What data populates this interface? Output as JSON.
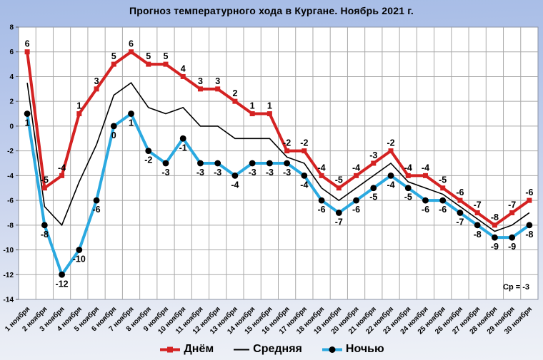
{
  "title": "Прогноз температурного хода в Кургане. Ноябрь 2021 г.",
  "annotation": "Ср = -3",
  "chart_data": {
    "type": "line",
    "title": "Прогноз температурного хода в Кургане. Ноябрь 2021 г.",
    "categories": [
      "1 ноября",
      "2 ноября",
      "3 ноября",
      "4 ноября",
      "5 ноября",
      "6 ноября",
      "7 ноября",
      "8 ноября",
      "9 ноября",
      "10 ноября",
      "11 ноября",
      "12 ноября",
      "13 ноября",
      "14 ноября",
      "15 ноября",
      "16 ноября",
      "17 ноября",
      "18 ноября",
      "19 ноября",
      "20 ноября",
      "21 ноября",
      "22 ноября",
      "23 ноября",
      "24 ноября",
      "25 ноября",
      "26 ноября",
      "27 ноября",
      "28 ноября",
      "29 ноября",
      "30 ноября"
    ],
    "series": [
      {
        "name": "Днём",
        "color": "#d42222",
        "marker": "square",
        "line_width": 4,
        "labels": "above",
        "values": [
          6,
          -5,
          -4,
          1,
          3,
          5,
          6,
          5,
          5,
          4,
          3,
          3,
          2,
          1,
          1,
          -2,
          -2,
          -4,
          -5,
          -4,
          -3,
          -2,
          -4,
          -4,
          -5,
          -6,
          -7,
          -8,
          -7,
          -6
        ]
      },
      {
        "name": "Средняя",
        "color": "#000000",
        "marker": "none",
        "line_width": 1.6,
        "labels": "none",
        "values": [
          3.5,
          -6.5,
          -8,
          -4.5,
          -1.5,
          2.5,
          3.5,
          1.5,
          1,
          1.5,
          0,
          0,
          -1,
          -1,
          -1,
          -2.5,
          -3,
          -5,
          -6,
          -5,
          -4,
          -3,
          -4.5,
          -5,
          -5.5,
          -6.5,
          -7.5,
          -8.5,
          -8,
          -7
        ]
      },
      {
        "name": "Ночью",
        "color": "#2aa9e0",
        "marker": "circle-black",
        "line_width": 4,
        "labels": "below",
        "values": [
          1,
          -8,
          -12,
          -10,
          -6,
          0,
          1,
          -2,
          -3,
          -1,
          -3,
          -3,
          -4,
          -3,
          -3,
          -3,
          -4,
          -6,
          -7,
          -6,
          -5,
          -4,
          -5,
          -6,
          -6,
          -7,
          -8,
          -9,
          -9,
          -8
        ]
      }
    ],
    "ylim": [
      -14,
      8
    ],
    "yticks": [
      8,
      6,
      4,
      2,
      0,
      -2,
      -4,
      -6,
      -8,
      -10,
      -12,
      -14
    ],
    "grid": true,
    "legend_position": "bottom",
    "annotation": "Ср = -3",
    "xlabel": "",
    "ylabel": ""
  }
}
